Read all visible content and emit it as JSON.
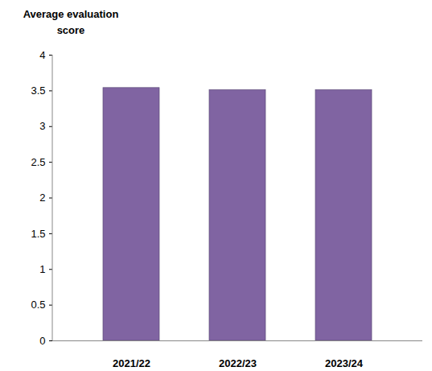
{
  "chart_data": {
    "type": "bar",
    "y_label": "Average evaluation score",
    "categories": [
      "2021/22",
      "2022/23",
      "2023/24"
    ],
    "values": [
      3.54,
      3.51,
      3.51
    ],
    "color": "#8064a2",
    "ylim": [
      0,
      4
    ],
    "yticks": [
      0,
      0.5,
      1,
      1.5,
      2,
      2.5,
      3,
      3.5,
      4
    ],
    "grid": false
  }
}
